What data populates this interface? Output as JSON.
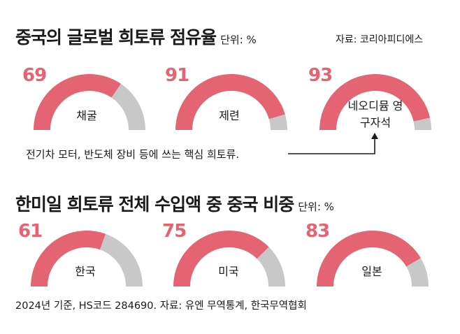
{
  "section1": {
    "title": "중국의 글로벌 희토류 점유율",
    "unit": "단위: %",
    "source": "자료: 코리아피디에스"
  },
  "section2": {
    "title": "한미일 희토류 전체 수입액 중 중국 비중",
    "unit": "단위: %"
  },
  "annotation": "전기차 모터, 반도체 장비 등에 쓰는 핵심 희토류.",
  "footnote": "2024년 기준, HS코드 284690. 자료: 유엔 무역통계, 한국무역협회",
  "colors": {
    "fill": "#e46473",
    "rest": "#c8c8c8",
    "pct_text": "#e46473"
  },
  "chart_data": [
    {
      "type": "gauge",
      "title": "중국의 글로벌 희토류 점유율",
      "unit": "%",
      "categories": [
        "채굴",
        "제련",
        "네오디뮴 영구자석"
      ],
      "values": [
        69,
        91,
        93
      ],
      "max": 100
    },
    {
      "type": "gauge",
      "title": "한미일 희토류 전체 수입액 중 중국 비중",
      "unit": "%",
      "categories": [
        "한국",
        "미국",
        "일본"
      ],
      "values": [
        61,
        75,
        83
      ],
      "max": 100
    }
  ]
}
